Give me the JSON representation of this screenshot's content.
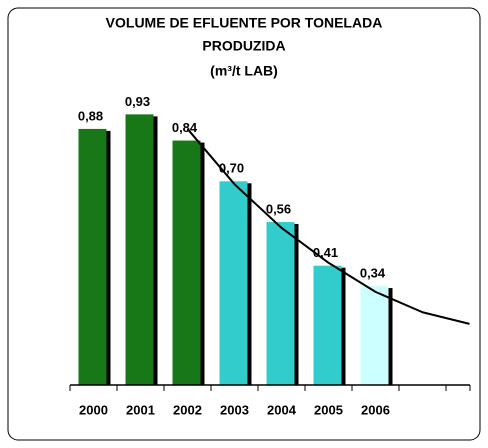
{
  "chart_data": {
    "type": "bar",
    "title": [
      "VOLUME DE EFLUENTE POR TONELADA",
      "PRODUZIDA",
      "(m³/t LAB)"
    ],
    "categories": [
      "2000",
      "2001",
      "2002",
      "2003",
      "2004",
      "2005",
      "2006",
      null,
      null
    ],
    "values": [
      0.88,
      0.93,
      0.84,
      0.7,
      0.56,
      0.41,
      0.34,
      null,
      null
    ],
    "value_labels": [
      "0,88",
      "0,93",
      "0,84",
      "0,70",
      "0,56",
      "0,41",
      "0,34",
      null,
      null
    ],
    "colors": [
      "#187818",
      "#187818",
      "#187818",
      "#33cccc",
      "#33cccc",
      "#33cccc",
      "#ccffff",
      null,
      null
    ],
    "trend": [
      null,
      null,
      0.88,
      0.69,
      0.54,
      0.42,
      0.32,
      0.25,
      0.21
    ],
    "trend_color": "#000000",
    "ylim": [
      0,
      1.0
    ]
  }
}
